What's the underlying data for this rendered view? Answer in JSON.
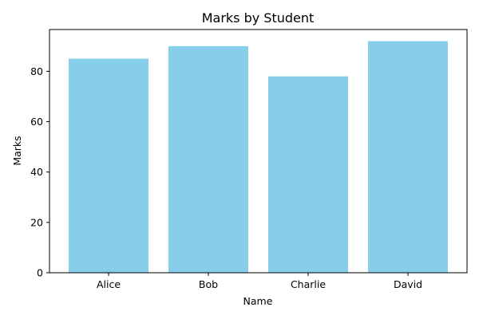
{
  "chart_data": {
    "type": "bar",
    "title": "Marks by Student",
    "xlabel": "Name",
    "ylabel": "Marks",
    "categories": [
      "Alice",
      "Bob",
      "Charlie",
      "David"
    ],
    "values": [
      85,
      90,
      78,
      92
    ],
    "ylim": [
      0,
      96.6
    ],
    "yticks": [
      0,
      20,
      40,
      60,
      80
    ],
    "bar_color": "#87ceeb",
    "grid": false,
    "legend": "none"
  }
}
